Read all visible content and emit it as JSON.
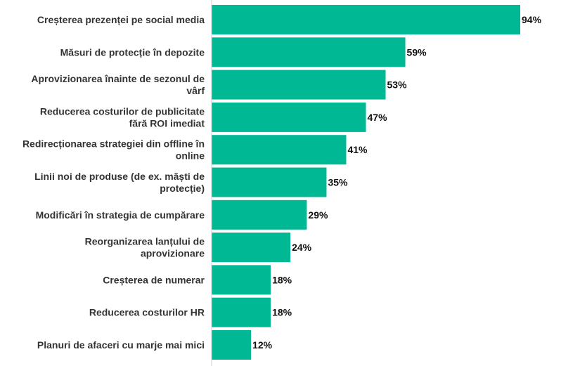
{
  "chart_data": {
    "type": "bar",
    "orientation": "horizontal",
    "categories": [
      [
        "Creșterea prezenței pe social media"
      ],
      [
        "Măsuri de protecție în depozite"
      ],
      [
        "Aprovizionarea înainte de sezonul de",
        "vârf"
      ],
      [
        "Reducerea costurilor de publicitate",
        "fără ROI imediat"
      ],
      [
        "Redirecționarea strategiei din offline în",
        "online"
      ],
      [
        "Linii noi de produse (de ex. măști de",
        "protecție)"
      ],
      [
        "Modificări în strategia de cumpărare"
      ],
      [
        "Reorganizarea lanțului de",
        "aprovizionare"
      ],
      [
        "Creșterea de numerar"
      ],
      [
        "Reducerea costurilor HR"
      ],
      [
        "Planuri de afaceri cu marje mai mici"
      ]
    ],
    "values": [
      94,
      59,
      53,
      47,
      41,
      35,
      29,
      24,
      18,
      18,
      12
    ],
    "value_labels": [
      "94%",
      "59%",
      "53%",
      "47%",
      "41%",
      "35%",
      "29%",
      "24%",
      "18%",
      "18%",
      "12%"
    ],
    "xlim": [
      0,
      94
    ],
    "grid": false,
    "bar_color": "#00b894",
    "axis_color": "#cccccc"
  }
}
